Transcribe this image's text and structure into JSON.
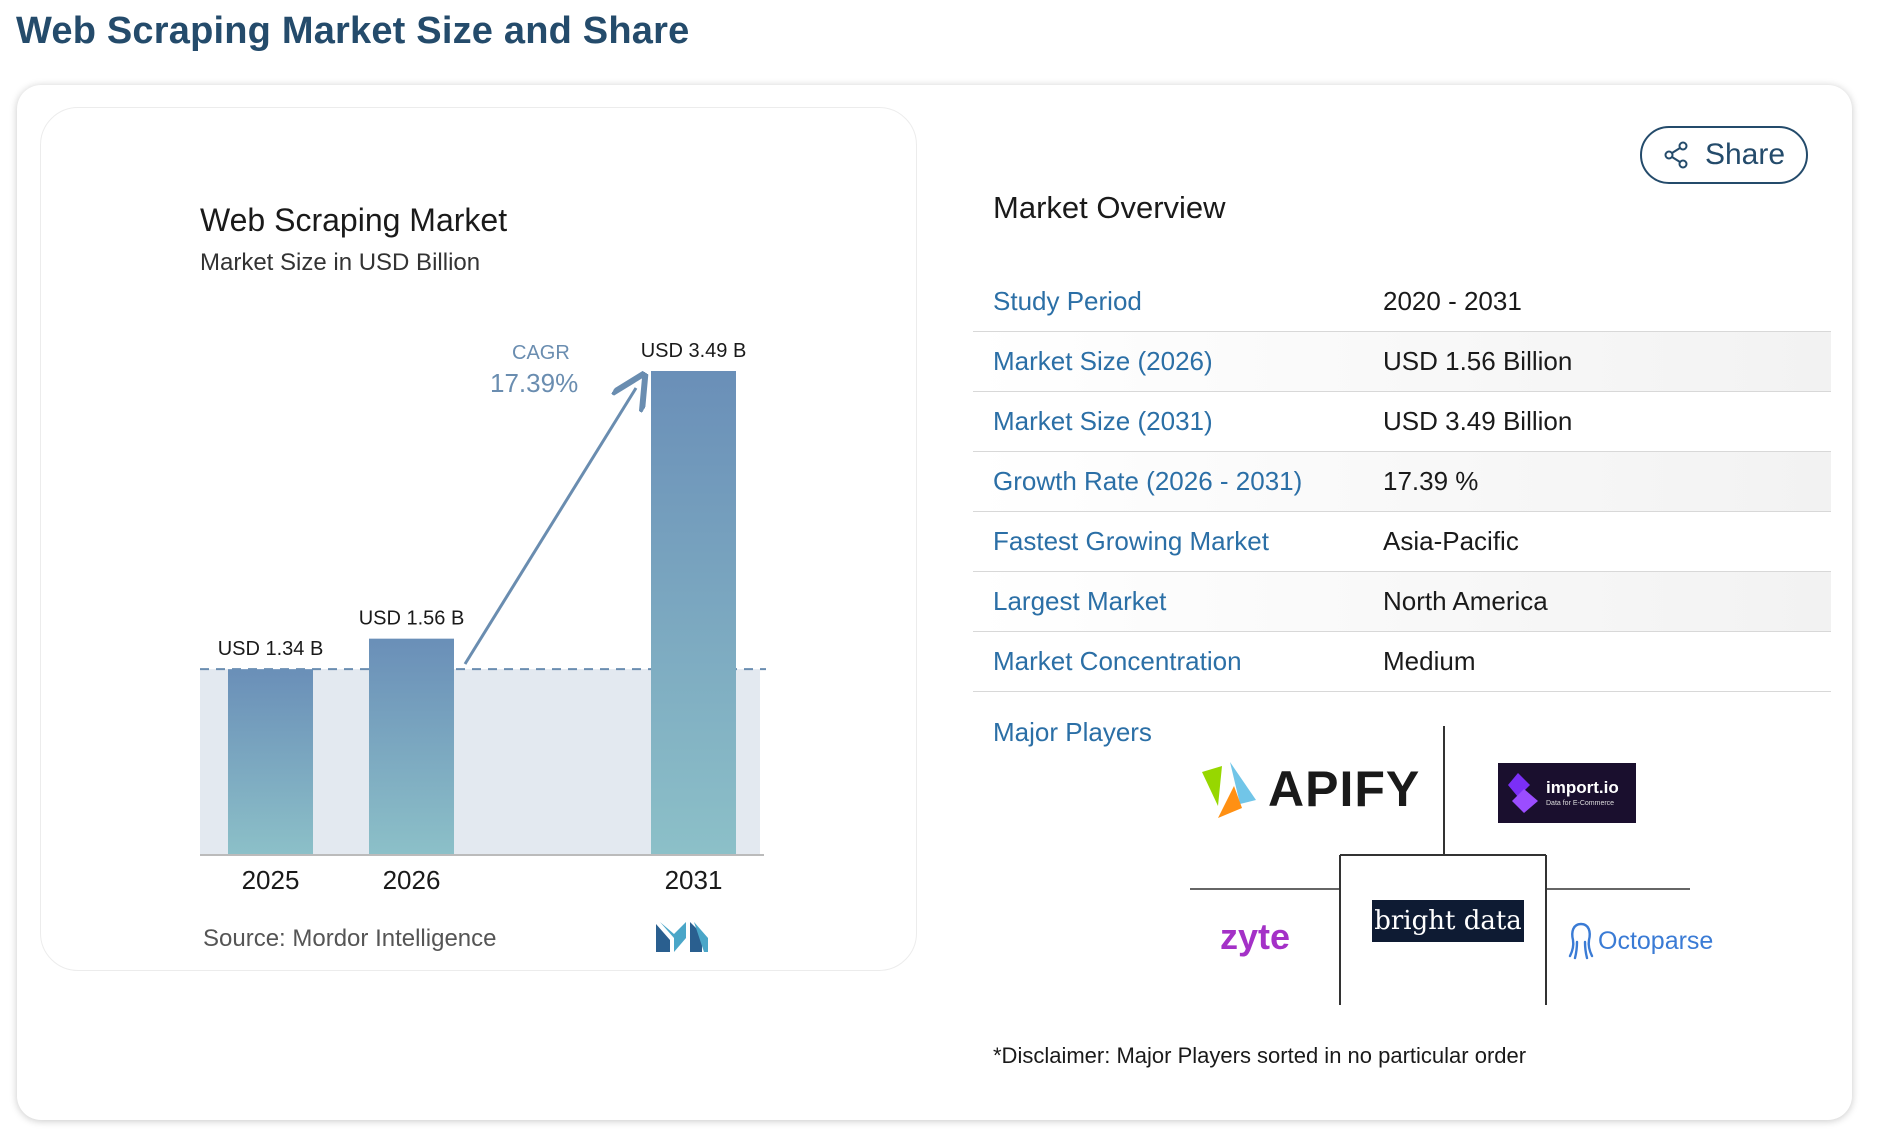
{
  "page_title": "Web Scraping Market Size and Share",
  "chart_data": {
    "type": "bar",
    "title": "Web Scraping Market",
    "subtitle": "Market Size in USD Billion",
    "categories": [
      "2025",
      "2026",
      "2031"
    ],
    "values": [
      1.34,
      1.56,
      3.49
    ],
    "data_labels": [
      "USD 1.34 B",
      "USD 1.56 B",
      "USD 3.49 B"
    ],
    "ylim": [
      0,
      3.49
    ],
    "reference_line_value": 1.34,
    "cagr_label": "CAGR",
    "cagr_value": "17.39%",
    "grid": false,
    "source": "Source:  Mordor Intelligence",
    "colors": {
      "bar_top": "#6a8fb8",
      "bar_bottom": "#8cc0c8",
      "band": "#e3e9f0",
      "arrow": "#6a8db0"
    }
  },
  "share_label": "Share",
  "overview": {
    "heading": "Market Overview",
    "rows": [
      {
        "key": "Study Period",
        "value": "2020 - 2031"
      },
      {
        "key": "Market Size (2026)",
        "value": "USD 1.56 Billion"
      },
      {
        "key": "Market Size (2031)",
        "value": "USD 3.49 Billion"
      },
      {
        "key": "Growth Rate (2026 - 2031)",
        "value": "17.39 %"
      },
      {
        "key": "Fastest Growing Market",
        "value": "Asia-Pacific"
      },
      {
        "key": "Largest Market",
        "value": "North America"
      },
      {
        "key": "Market Concentration",
        "value": "Medium"
      }
    ]
  },
  "players": {
    "label": "Major Players",
    "apify": "APIFY",
    "importio": "import.io",
    "importio_sub": "Data for E-Commerce",
    "zyte": "zyte",
    "brightdata": "bright data",
    "octoparse": "Octoparse"
  },
  "disclaimer": "*Disclaimer: Major Players sorted in no particular order"
}
